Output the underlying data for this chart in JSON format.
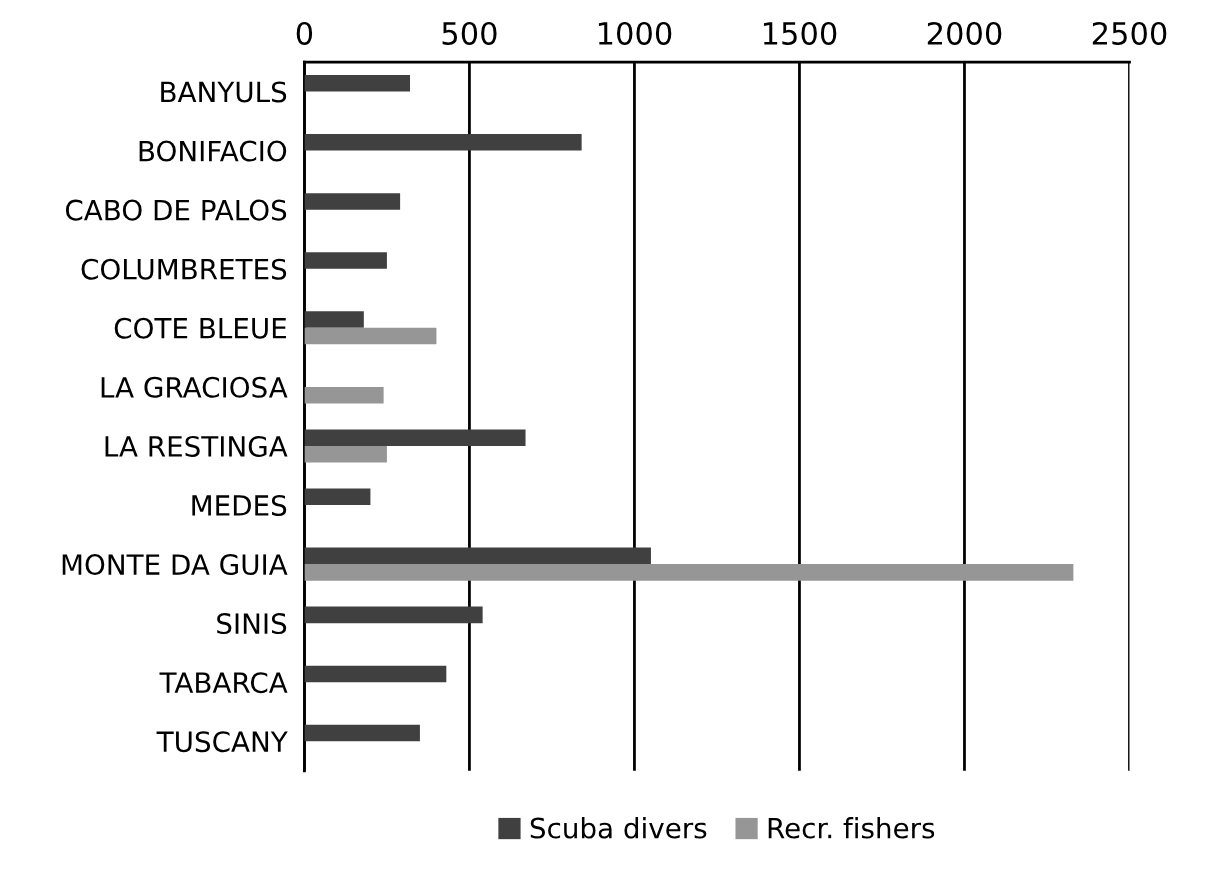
{
  "chart_data": {
    "type": "bar",
    "orientation": "horizontal",
    "categories": [
      "BANYULS",
      "BONIFACIO",
      "CABO DE PALOS",
      "COLUMBRETES",
      "COTE BLEUE",
      "LA GRACIOSA",
      "LA RESTINGA",
      "MEDES",
      "MONTE DA GUIA",
      "SINIS",
      "TABARCA",
      "TUSCANY"
    ],
    "series": [
      {
        "name": "Scuba divers",
        "color": "#404040",
        "values": [
          320,
          840,
          290,
          250,
          180,
          null,
          670,
          200,
          1050,
          540,
          430,
          350
        ]
      },
      {
        "name": "Recr. fishers",
        "color": "#969696",
        "values": [
          null,
          null,
          null,
          null,
          400,
          240,
          250,
          null,
          2330,
          null,
          null,
          null
        ]
      }
    ],
    "xlim": [
      0,
      2500
    ],
    "xticks": [
      0,
      500,
      1000,
      1500,
      2000,
      2500
    ],
    "grid": "x",
    "legend": "bottom"
  }
}
